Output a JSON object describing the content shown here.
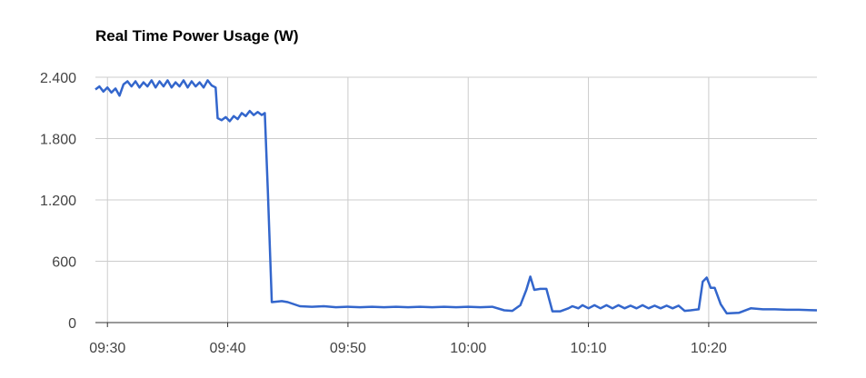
{
  "chart_data": {
    "type": "line",
    "title": "Real Time Power Usage (W)",
    "xlabel": "",
    "ylabel": "",
    "ylim": [
      0,
      2400
    ],
    "xlim": [
      "09:29",
      "10:29"
    ],
    "y_ticks": [
      0,
      600,
      1200,
      1800,
      2400
    ],
    "y_tick_labels": [
      "0",
      "600",
      "1.200",
      "1.800",
      "2.400"
    ],
    "x_ticks": [
      "09:30",
      "09:40",
      "09:50",
      "10:00",
      "10:10",
      "10:20"
    ],
    "grid": true,
    "legend": "none",
    "series": [
      {
        "color": "#3366cc",
        "points": [
          [
            "09:29:00",
            2280
          ],
          [
            "09:29:20",
            2310
          ],
          [
            "09:29:40",
            2260
          ],
          [
            "09:30:00",
            2300
          ],
          [
            "09:30:20",
            2250
          ],
          [
            "09:30:40",
            2290
          ],
          [
            "09:31:00",
            2220
          ],
          [
            "09:31:20",
            2330
          ],
          [
            "09:31:40",
            2360
          ],
          [
            "09:32:00",
            2310
          ],
          [
            "09:32:20",
            2360
          ],
          [
            "09:32:40",
            2300
          ],
          [
            "09:33:00",
            2350
          ],
          [
            "09:33:20",
            2310
          ],
          [
            "09:33:40",
            2370
          ],
          [
            "09:34:00",
            2300
          ],
          [
            "09:34:20",
            2360
          ],
          [
            "09:34:40",
            2310
          ],
          [
            "09:35:00",
            2370
          ],
          [
            "09:35:20",
            2300
          ],
          [
            "09:35:40",
            2350
          ],
          [
            "09:36:00",
            2310
          ],
          [
            "09:36:20",
            2370
          ],
          [
            "09:36:40",
            2300
          ],
          [
            "09:37:00",
            2360
          ],
          [
            "09:37:20",
            2310
          ],
          [
            "09:37:40",
            2350
          ],
          [
            "09:38:00",
            2300
          ],
          [
            "09:38:20",
            2370
          ],
          [
            "09:38:40",
            2320
          ],
          [
            "09:39:00",
            2300
          ],
          [
            "09:39:10",
            2000
          ],
          [
            "09:39:30",
            1980
          ],
          [
            "09:39:50",
            2010
          ],
          [
            "09:40:10",
            1970
          ],
          [
            "09:40:30",
            2020
          ],
          [
            "09:40:50",
            1990
          ],
          [
            "09:41:10",
            2050
          ],
          [
            "09:41:30",
            2020
          ],
          [
            "09:41:50",
            2070
          ],
          [
            "09:42:10",
            2030
          ],
          [
            "09:42:30",
            2060
          ],
          [
            "09:42:50",
            2030
          ],
          [
            "09:43:05",
            2050
          ],
          [
            "09:43:20",
            1300
          ],
          [
            "09:43:40",
            200
          ],
          [
            "09:44:30",
            210
          ],
          [
            "09:45:00",
            200
          ],
          [
            "09:46:00",
            160
          ],
          [
            "09:47:00",
            155
          ],
          [
            "09:48:00",
            160
          ],
          [
            "09:49:00",
            150
          ],
          [
            "09:50:00",
            155
          ],
          [
            "09:51:00",
            150
          ],
          [
            "09:52:00",
            155
          ],
          [
            "09:53:00",
            150
          ],
          [
            "09:54:00",
            155
          ],
          [
            "09:55:00",
            150
          ],
          [
            "09:56:00",
            155
          ],
          [
            "09:57:00",
            150
          ],
          [
            "09:58:00",
            155
          ],
          [
            "09:59:00",
            150
          ],
          [
            "10:00:00",
            155
          ],
          [
            "10:01:00",
            150
          ],
          [
            "10:02:00",
            155
          ],
          [
            "10:03:00",
            120
          ],
          [
            "10:03:40",
            115
          ],
          [
            "10:04:20",
            170
          ],
          [
            "10:04:50",
            320
          ],
          [
            "10:05:10",
            450
          ],
          [
            "10:05:30",
            320
          ],
          [
            "10:06:00",
            330
          ],
          [
            "10:06:30",
            330
          ],
          [
            "10:07:00",
            110
          ],
          [
            "10:07:40",
            110
          ],
          [
            "10:08:20",
            140
          ],
          [
            "10:08:40",
            160
          ],
          [
            "10:09:10",
            140
          ],
          [
            "10:09:30",
            170
          ],
          [
            "10:10:00",
            140
          ],
          [
            "10:10:30",
            170
          ],
          [
            "10:11:00",
            140
          ],
          [
            "10:11:30",
            170
          ],
          [
            "10:12:00",
            140
          ],
          [
            "10:12:30",
            170
          ],
          [
            "10:13:00",
            140
          ],
          [
            "10:13:30",
            165
          ],
          [
            "10:14:00",
            140
          ],
          [
            "10:14:30",
            170
          ],
          [
            "10:15:00",
            140
          ],
          [
            "10:15:30",
            165
          ],
          [
            "10:16:00",
            140
          ],
          [
            "10:16:30",
            165
          ],
          [
            "10:17:00",
            140
          ],
          [
            "10:17:30",
            165
          ],
          [
            "10:18:00",
            115
          ],
          [
            "10:18:30",
            120
          ],
          [
            "10:19:10",
            130
          ],
          [
            "10:19:30",
            400
          ],
          [
            "10:19:50",
            440
          ],
          [
            "10:20:10",
            340
          ],
          [
            "10:20:30",
            340
          ],
          [
            "10:21:00",
            180
          ],
          [
            "10:21:30",
            90
          ],
          [
            "10:22:30",
            95
          ],
          [
            "10:23:30",
            140
          ],
          [
            "10:24:30",
            130
          ],
          [
            "10:25:30",
            130
          ],
          [
            "10:26:30",
            125
          ],
          [
            "10:27:30",
            125
          ],
          [
            "10:29:00",
            120
          ]
        ]
      }
    ]
  }
}
